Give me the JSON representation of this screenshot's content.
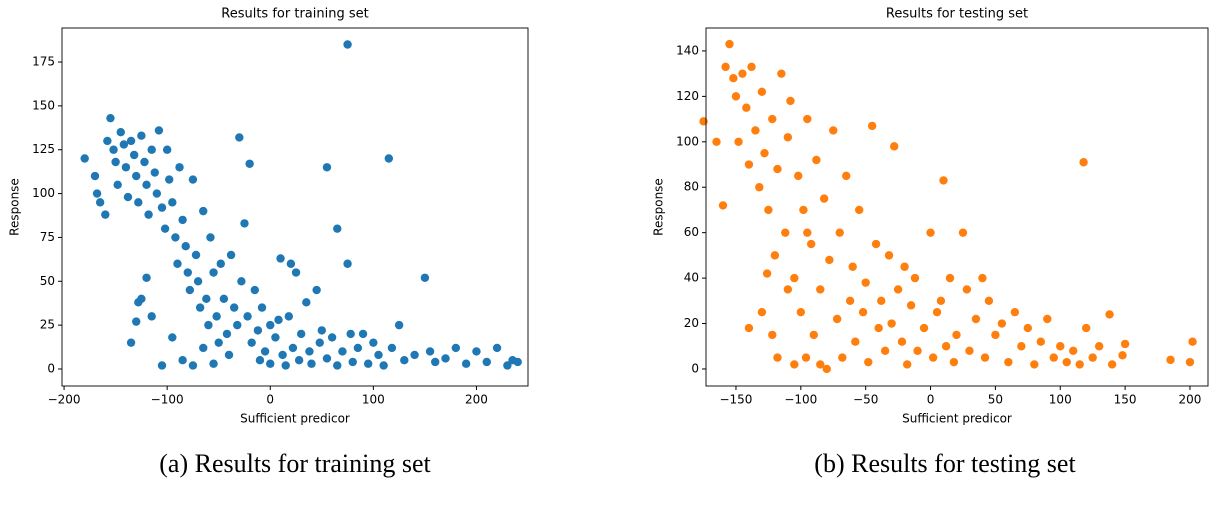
{
  "chart_data": [
    {
      "type": "scatter",
      "title": "Results for training set",
      "x_label": "Sufficient predicor",
      "y_label": "Response",
      "caption": "(a) Results for training set",
      "color": "#1f77b4",
      "xlim": [
        -202,
        250
      ],
      "ylim": [
        -9.7,
        194.4
      ],
      "xticks": [
        {
          "value": -200,
          "label": "−200"
        },
        {
          "value": -100,
          "label": "−100"
        },
        0,
        100,
        200
      ],
      "yticks": [
        0,
        25,
        50,
        75,
        100,
        125,
        150,
        175
      ],
      "x": [
        -180,
        -170,
        -168,
        -165,
        -160,
        -158,
        -155,
        -152,
        -150,
        -148,
        -145,
        -142,
        -140,
        -138,
        -135,
        -132,
        -130,
        -128,
        -125,
        -122,
        -120,
        -118,
        -115,
        -112,
        -110,
        -108,
        -105,
        -102,
        -100,
        -98,
        -95,
        -92,
        -90,
        -88,
        -85,
        -82,
        -80,
        -78,
        -75,
        -72,
        -70,
        -68,
        -65,
        -62,
        -60,
        -58,
        -55,
        -52,
        -50,
        -48,
        -45,
        -42,
        -40,
        -38,
        -35,
        -32,
        -30,
        -28,
        -25,
        -22,
        -20,
        -18,
        -15,
        -12,
        -10,
        -8,
        -5,
        0,
        0,
        5,
        8,
        10,
        12,
        15,
        18,
        20,
        22,
        25,
        28,
        30,
        35,
        38,
        40,
        45,
        48,
        50,
        55,
        55,
        60,
        65,
        65,
        70,
        75,
        75,
        78,
        80,
        85,
        90,
        95,
        100,
        105,
        110,
        115,
        118,
        125,
        130,
        140,
        150,
        155,
        160,
        170,
        180,
        190,
        200,
        210,
        220,
        230,
        235,
        240,
        -135,
        -130,
        -128,
        -125,
        -120,
        -115,
        -105,
        -95,
        -85,
        -75,
        -65,
        -55
      ],
      "values": [
        120,
        110,
        100,
        95,
        88,
        130,
        143,
        125,
        118,
        105,
        135,
        128,
        115,
        98,
        130,
        122,
        110,
        95,
        133,
        118,
        105,
        88,
        125,
        112,
        100,
        136,
        92,
        80,
        125,
        108,
        95,
        75,
        60,
        115,
        85,
        70,
        55,
        45,
        108,
        65,
        50,
        35,
        90,
        40,
        25,
        75,
        55,
        30,
        15,
        60,
        40,
        20,
        8,
        65,
        35,
        25,
        132,
        50,
        83,
        30,
        117,
        15,
        45,
        22,
        5,
        35,
        10,
        25,
        3,
        18,
        28,
        63,
        8,
        2,
        30,
        60,
        12,
        55,
        5,
        20,
        38,
        10,
        3,
        45,
        15,
        22,
        115,
        6,
        18,
        80,
        2,
        10,
        185,
        60,
        20,
        4,
        12,
        20,
        3,
        15,
        8,
        2,
        120,
        12,
        25,
        5,
        8,
        52,
        10,
        4,
        6,
        12,
        3,
        10,
        4,
        12,
        2,
        5,
        4,
        15,
        27,
        38,
        40,
        52,
        30,
        2,
        18,
        5,
        2,
        12,
        3
      ]
    },
    {
      "type": "scatter",
      "title": "Results for testing set",
      "x_label": "Sufficient predicor",
      "y_label": "Response",
      "caption": "(b) Results for testing set",
      "color": "#ff7f0e",
      "xlim": [
        -173.1,
        213.9
      ],
      "ylim": [
        -7.5,
        150.1
      ],
      "xticks": [
        {
          "value": -150,
          "label": "−150"
        },
        {
          "value": -100,
          "label": "−100"
        },
        {
          "value": -50,
          "label": "−50"
        },
        0,
        50,
        100,
        150,
        200
      ],
      "yticks": [
        0,
        20,
        40,
        60,
        80,
        100,
        120,
        140
      ],
      "x": [
        -175,
        -165,
        -160,
        -158,
        -155,
        -152,
        -150,
        -148,
        -145,
        -142,
        -140,
        -138,
        -135,
        -132,
        -130,
        -128,
        -126,
        -125,
        -122,
        -120,
        -118,
        -115,
        -112,
        -110,
        -108,
        -105,
        -102,
        -100,
        -98,
        -96,
        -95,
        -92,
        -90,
        -88,
        -85,
        -82,
        -80,
        -78,
        -75,
        -72,
        -70,
        -68,
        -65,
        -62,
        -60,
        -58,
        -55,
        -52,
        -50,
        -48,
        -45,
        -42,
        -40,
        -38,
        -35,
        -32,
        -30,
        -28,
        -25,
        -22,
        -20,
        -18,
        -15,
        -12,
        -10,
        -5,
        0,
        2,
        5,
        8,
        10,
        12,
        15,
        18,
        20,
        25,
        28,
        30,
        35,
        40,
        42,
        45,
        50,
        55,
        60,
        65,
        70,
        75,
        80,
        85,
        90,
        95,
        100,
        105,
        110,
        115,
        118,
        120,
        125,
        130,
        138,
        140,
        148,
        150,
        185,
        200,
        202,
        -140,
        -130,
        -122,
        -118,
        -110,
        -105,
        -95,
        -85
      ],
      "values": [
        109,
        100,
        72,
        133,
        143,
        128,
        120,
        100,
        130,
        115,
        90,
        133,
        105,
        80,
        122,
        95,
        42,
        70,
        110,
        50,
        88,
        130,
        60,
        102,
        118,
        40,
        85,
        25,
        70,
        5,
        110,
        55,
        15,
        92,
        35,
        75,
        0,
        48,
        105,
        22,
        60,
        5,
        85,
        30,
        45,
        12,
        70,
        25,
        38,
        3,
        107,
        55,
        18,
        30,
        8,
        50,
        20,
        98,
        35,
        12,
        45,
        2,
        28,
        40,
        8,
        18,
        60,
        5,
        25,
        30,
        83,
        10,
        40,
        3,
        15,
        60,
        35,
        8,
        22,
        40,
        5,
        30,
        15,
        20,
        3,
        25,
        10,
        18,
        2,
        12,
        22,
        5,
        10,
        3,
        8,
        2,
        91,
        18,
        5,
        10,
        24,
        2,
        6,
        11,
        4,
        3,
        12,
        18,
        25,
        15,
        5,
        35,
        2,
        60,
        2
      ]
    }
  ]
}
